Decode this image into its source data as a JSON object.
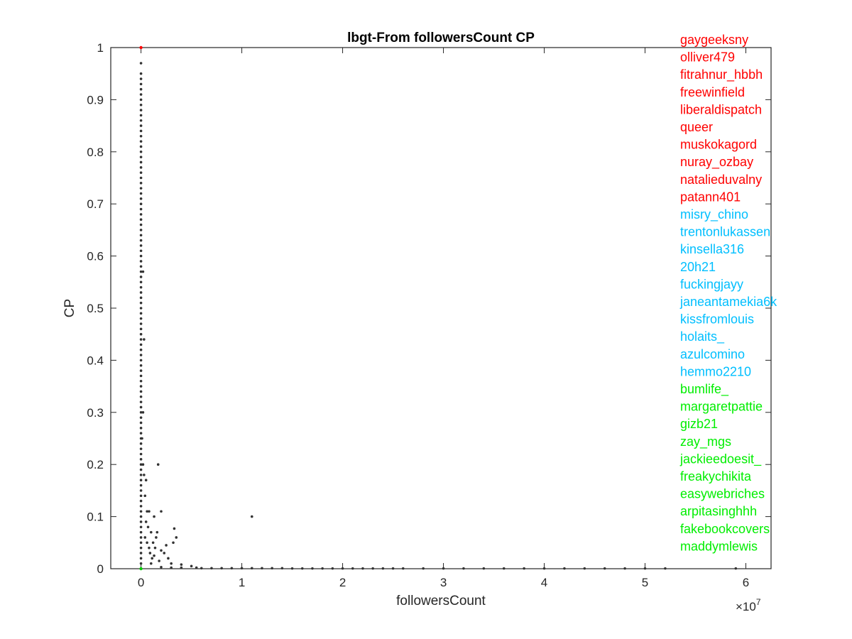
{
  "chart_data": {
    "type": "scatter",
    "title": "lbgt-From followersCount CP",
    "xlabel": "followersCount",
    "ylabel": "CP",
    "x_exponent_label": "×10",
    "x_exponent_power": "7",
    "x_multiplier": 10000000,
    "xlim": [
      -0.3,
      6.25
    ],
    "ylim": [
      0,
      1
    ],
    "x_ticks": [
      0,
      1,
      2,
      3,
      4,
      5,
      6
    ],
    "x_tick_labels": [
      "0",
      "1",
      "2",
      "3",
      "4",
      "5",
      "6"
    ],
    "y_ticks": [
      0,
      0.1,
      0.2,
      0.3,
      0.4,
      0.5,
      0.6,
      0.7,
      0.8,
      0.9,
      1
    ],
    "y_tick_labels": [
      "0",
      "0.1",
      "0.2",
      "0.3",
      "0.4",
      "0.5",
      "0.6",
      "0.7",
      "0.8",
      "0.9",
      "1"
    ],
    "grid": false,
    "box": true,
    "point_color": "#333333",
    "series": [
      {
        "points": [
          [
            0.0,
            1.0
          ],
          [
            0.0,
            0.97
          ],
          [
            0.0,
            0.95
          ],
          [
            0.0,
            0.94
          ],
          [
            0.0,
            0.93
          ],
          [
            0.0,
            0.92
          ],
          [
            0.0,
            0.91
          ],
          [
            0.0,
            0.9
          ],
          [
            0.0,
            0.89
          ],
          [
            0.0,
            0.88
          ],
          [
            0.0,
            0.87
          ],
          [
            0.0,
            0.86
          ],
          [
            0.0,
            0.85
          ],
          [
            0.0,
            0.84
          ],
          [
            0.0,
            0.83
          ],
          [
            0.0,
            0.82
          ],
          [
            0.0,
            0.81
          ],
          [
            0.0,
            0.8
          ],
          [
            0.0,
            0.79
          ],
          [
            0.0,
            0.78
          ],
          [
            0.0,
            0.77
          ],
          [
            0.0,
            0.76
          ],
          [
            0.0,
            0.75
          ],
          [
            0.0,
            0.74
          ],
          [
            0.0,
            0.73
          ],
          [
            0.0,
            0.72
          ],
          [
            0.0,
            0.71
          ],
          [
            0.0,
            0.7
          ],
          [
            0.0,
            0.69
          ],
          [
            0.0,
            0.68
          ],
          [
            0.0,
            0.67
          ],
          [
            0.0,
            0.66
          ],
          [
            0.0,
            0.65
          ],
          [
            0.0,
            0.64
          ],
          [
            0.0,
            0.63
          ],
          [
            0.0,
            0.62
          ],
          [
            0.0,
            0.61
          ],
          [
            0.0,
            0.6
          ],
          [
            0.0,
            0.59
          ],
          [
            0.0,
            0.58
          ],
          [
            0.0,
            0.57
          ],
          [
            0.0,
            0.56
          ],
          [
            0.0,
            0.55
          ],
          [
            0.0,
            0.54
          ],
          [
            0.0,
            0.53
          ],
          [
            0.0,
            0.52
          ],
          [
            0.0,
            0.51
          ],
          [
            0.0,
            0.5
          ],
          [
            0.0,
            0.49
          ],
          [
            0.0,
            0.48
          ],
          [
            0.0,
            0.47
          ],
          [
            0.0,
            0.46
          ],
          [
            0.0,
            0.45
          ],
          [
            0.0,
            0.44
          ],
          [
            0.0,
            0.43
          ],
          [
            0.0,
            0.42
          ],
          [
            0.0,
            0.41
          ],
          [
            0.0,
            0.4
          ],
          [
            0.0,
            0.39
          ],
          [
            0.0,
            0.38
          ],
          [
            0.0,
            0.37
          ],
          [
            0.0,
            0.36
          ],
          [
            0.0,
            0.35
          ],
          [
            0.0,
            0.34
          ],
          [
            0.0,
            0.33
          ],
          [
            0.0,
            0.32
          ],
          [
            0.0,
            0.31
          ],
          [
            0.0,
            0.3
          ],
          [
            0.0,
            0.29
          ],
          [
            0.0,
            0.28
          ],
          [
            0.0,
            0.27
          ],
          [
            0.0,
            0.26
          ],
          [
            0.0,
            0.25
          ],
          [
            0.0,
            0.24
          ],
          [
            0.0,
            0.23
          ],
          [
            0.0,
            0.22
          ],
          [
            0.0,
            0.21
          ],
          [
            0.0,
            0.2
          ],
          [
            0.0,
            0.19
          ],
          [
            0.0,
            0.18
          ],
          [
            0.0,
            0.17
          ],
          [
            0.0,
            0.16
          ],
          [
            0.0,
            0.15
          ],
          [
            0.0,
            0.14
          ],
          [
            0.0,
            0.13
          ],
          [
            0.0,
            0.12
          ],
          [
            0.0,
            0.11
          ],
          [
            0.0,
            0.1
          ],
          [
            0.0,
            0.09
          ],
          [
            0.0,
            0.08
          ],
          [
            0.0,
            0.07
          ],
          [
            0.0,
            0.06
          ],
          [
            0.0,
            0.05
          ],
          [
            0.0,
            0.04
          ],
          [
            0.0,
            0.03
          ],
          [
            0.0,
            0.02
          ],
          [
            0.0,
            0.01
          ],
          [
            0.02,
            0.57
          ],
          [
            0.03,
            0.44
          ],
          [
            0.02,
            0.3
          ],
          [
            0.01,
            0.25
          ],
          [
            0.02,
            0.2
          ],
          [
            0.03,
            0.18
          ],
          [
            0.05,
            0.17
          ],
          [
            0.04,
            0.14
          ],
          [
            0.06,
            0.11
          ],
          [
            0.08,
            0.11
          ],
          [
            0.05,
            0.09
          ],
          [
            0.07,
            0.08
          ],
          [
            0.1,
            0.07
          ],
          [
            0.12,
            0.05
          ],
          [
            0.14,
            0.04
          ],
          [
            0.09,
            0.03
          ],
          [
            0.11,
            0.02
          ],
          [
            0.15,
            0.06
          ],
          [
            0.04,
            0.06
          ],
          [
            0.06,
            0.05
          ],
          [
            0.08,
            0.04
          ],
          [
            0.1,
            0.01
          ],
          [
            0.13,
            0.025
          ],
          [
            0.17,
            0.2
          ],
          [
            0.2,
            0.11
          ],
          [
            0.13,
            0.1
          ],
          [
            0.16,
            0.07
          ],
          [
            0.25,
            0.045
          ],
          [
            0.2,
            0.035
          ],
          [
            0.23,
            0.03
          ],
          [
            0.18,
            0.015
          ],
          [
            0.27,
            0.02
          ],
          [
            0.3,
            0.01
          ],
          [
            0.33,
            0.077
          ],
          [
            0.35,
            0.06
          ],
          [
            0.32,
            0.05
          ],
          [
            0.4,
            0.008
          ],
          [
            0.5,
            0.005
          ],
          [
            1.1,
            0.1
          ],
          [
            0.2,
            0.003
          ],
          [
            0.3,
            0.002
          ],
          [
            0.4,
            0.002
          ],
          [
            0.55,
            0.002
          ],
          [
            0.6,
            0.001
          ],
          [
            0.7,
            0.001
          ],
          [
            0.8,
            0.001
          ],
          [
            0.9,
            0.001
          ],
          [
            1.0,
            0.001
          ],
          [
            1.1,
            0.001
          ],
          [
            1.2,
            0.001
          ],
          [
            1.3,
            0.001
          ],
          [
            1.4,
            0.001
          ],
          [
            1.5,
            0.0005
          ],
          [
            1.6,
            0.0005
          ],
          [
            1.7,
            0.0005
          ],
          [
            1.8,
            0.0005
          ],
          [
            1.9,
            0.0005
          ],
          [
            2.0,
            0.0005
          ],
          [
            2.1,
            0.0005
          ],
          [
            2.2,
            0.0005
          ],
          [
            2.3,
            0.0005
          ],
          [
            2.4,
            0.0005
          ],
          [
            2.5,
            0.0005
          ],
          [
            2.6,
            0.0005
          ],
          [
            2.8,
            0.0005
          ],
          [
            3.0,
            0.0005
          ],
          [
            3.2,
            0.0005
          ],
          [
            3.4,
            0.0005
          ],
          [
            3.6,
            0.0005
          ],
          [
            3.8,
            0.0005
          ],
          [
            4.0,
            0.0005
          ],
          [
            4.2,
            0.0005
          ],
          [
            4.4,
            0.0005
          ],
          [
            4.6,
            0.0005
          ],
          [
            4.8,
            0.0005
          ],
          [
            5.0,
            0.0005
          ],
          [
            5.2,
            0.0005
          ],
          [
            5.9,
            0.0005
          ]
        ]
      }
    ],
    "highlight_points": [
      {
        "x": 0.0,
        "y": 1.0,
        "color": "#ff0000"
      },
      {
        "x": 0.0,
        "y": 0.0,
        "color": "#00cc00"
      }
    ],
    "annotations": {
      "red": {
        "color": "#ff0000",
        "names": [
          "gaygeeksny",
          "olliver479",
          "fitrahnur_hbbh",
          "freewinfield",
          "liberaldispatch",
          "queer",
          "muskokagord",
          "nuray_ozbay",
          "natalieduvalny",
          "patann401"
        ]
      },
      "cyan": {
        "color": "#00bfff",
        "names": [
          "misry_chino",
          "trentonlukassen",
          "kinsella316",
          "20h21",
          "fuckingjayy",
          "janeantamekia6k",
          "kissfromlouis",
          "holaits_",
          "azulcomino",
          "hemmo2210"
        ]
      },
      "green": {
        "color": "#00ee00",
        "names": [
          "bumlife_",
          "margaretpattie",
          "gizb21",
          "zay_mgs",
          "jackieedoesit_",
          "freakychikita",
          "easywebriches",
          "arpitasinghhh",
          "fakebookcovers",
          "maddymlewis"
        ]
      }
    }
  }
}
